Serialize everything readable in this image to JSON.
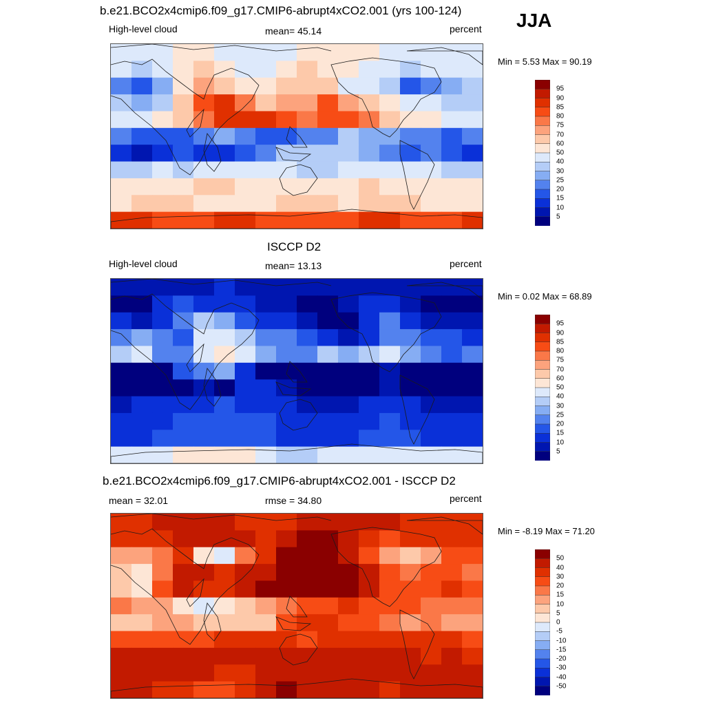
{
  "season": "JJA",
  "chart_data": [
    {
      "type": "heatmap",
      "title": "b.e21.BCO2x4cmip6.f09_g17.CMIP6-abrupt4xCO2.001 (yrs 100-124)",
      "left_label": "High-level cloud",
      "center_label": "mean=  45.14",
      "right_label": "percent",
      "minmax": "Min =   5.53 Max =  90.19",
      "mean": 45.14,
      "min": 5.53,
      "max": 90.19,
      "colorbar_levels": [
        "95",
        "90",
        "85",
        "80",
        "75",
        "70",
        "60",
        "50",
        "40",
        "30",
        "25",
        "20",
        "15",
        "10",
        "5"
      ],
      "colorbar_colors": [
        "#8a0000",
        "#c21a00",
        "#e03000",
        "#f74c15",
        "#fa7848",
        "#fca37d",
        "#fdc9aa",
        "#fde6d6",
        "#dde9fb",
        "#b4cdf7",
        "#86adf3",
        "#5382ee",
        "#2456e8",
        "#0a30d8",
        "#0016b0",
        "#00007e"
      ],
      "grid_rows": [
        [
          45,
          44,
          48,
          55,
          52,
          48,
          44,
          42,
          45,
          50,
          52,
          55,
          52,
          48,
          45,
          46,
          45,
          44
        ],
        [
          40,
          38,
          44,
          58,
          60,
          55,
          48,
          45,
          52,
          62,
          58,
          52,
          45,
          40,
          38,
          40,
          42,
          40
        ],
        [
          22,
          18,
          28,
          55,
          70,
          68,
          55,
          50,
          62,
          68,
          60,
          48,
          40,
          30,
          18,
          20,
          28,
          30
        ],
        [
          30,
          28,
          35,
          62,
          82,
          85,
          78,
          68,
          70,
          72,
          80,
          70,
          60,
          50,
          40,
          42,
          38,
          32
        ],
        [
          42,
          45,
          50,
          60,
          78,
          86,
          88,
          85,
          82,
          78,
          80,
          82,
          75,
          62,
          52,
          50,
          48,
          45
        ],
        [
          20,
          15,
          15,
          18,
          22,
          25,
          20,
          15,
          18,
          22,
          24,
          30,
          28,
          25,
          22,
          20,
          18,
          20
        ],
        [
          10,
          8,
          12,
          15,
          12,
          10,
          15,
          20,
          30,
          32,
          34,
          30,
          28,
          22,
          18,
          20,
          15,
          12
        ],
        [
          36,
          38,
          40,
          36,
          40,
          45,
          44,
          42,
          40,
          36,
          38,
          40,
          44,
          48,
          45,
          40,
          38,
          36
        ],
        [
          52,
          55,
          56,
          58,
          60,
          60,
          58,
          56,
          55,
          54,
          56,
          58,
          60,
          58,
          55,
          52,
          52,
          50
        ],
        [
          58,
          60,
          62,
          60,
          58,
          56,
          55,
          58,
          60,
          62,
          60,
          58,
          60,
          62,
          60,
          58,
          56,
          55
        ],
        [
          85,
          86,
          84,
          82,
          84,
          85,
          86,
          84,
          82,
          80,
          82,
          84,
          86,
          85,
          84,
          82,
          84,
          86
        ]
      ]
    },
    {
      "type": "heatmap",
      "title": "ISCCP D2",
      "left_label": "High-level cloud",
      "center_label": "mean=  13.13",
      "right_label": "percent",
      "minmax": "Min =   0.02 Max =  68.89",
      "mean": 13.13,
      "min": 0.02,
      "max": 68.89,
      "colorbar_levels": [
        "95",
        "90",
        "85",
        "80",
        "75",
        "70",
        "60",
        "50",
        "40",
        "30",
        "25",
        "20",
        "15",
        "10",
        "5"
      ],
      "colorbar_colors": [
        "#8a0000",
        "#c21a00",
        "#e03000",
        "#f74c15",
        "#fa7848",
        "#fca37d",
        "#fdc9aa",
        "#fde6d6",
        "#dde9fb",
        "#b4cdf7",
        "#86adf3",
        "#5382ee",
        "#2456e8",
        "#0a30d8",
        "#0016b0",
        "#00007e"
      ],
      "grid_rows": [
        [
          8,
          7,
          6,
          6,
          8,
          10,
          9,
          8,
          7,
          6,
          6,
          7,
          8,
          9,
          8,
          7,
          6,
          7
        ],
        [
          4,
          3,
          10,
          16,
          14,
          12,
          10,
          8,
          6,
          4,
          3,
          6,
          10,
          12,
          8,
          4,
          3,
          4
        ],
        [
          10,
          8,
          14,
          24,
          30,
          26,
          18,
          14,
          10,
          5,
          3,
          4,
          14,
          20,
          12,
          8,
          6,
          8
        ],
        [
          22,
          28,
          20,
          18,
          40,
          48,
          36,
          24,
          20,
          16,
          10,
          8,
          12,
          24,
          22,
          18,
          16,
          14
        ],
        [
          34,
          42,
          24,
          20,
          45,
          56,
          40,
          26,
          24,
          22,
          30,
          28,
          35,
          42,
          28,
          22,
          18,
          20
        ],
        [
          3,
          4,
          3,
          18,
          24,
          26,
          14,
          4,
          3,
          2,
          1,
          1,
          3,
          6,
          3,
          2,
          2,
          2
        ],
        [
          1,
          1,
          2,
          4,
          6,
          4,
          10,
          14,
          8,
          3,
          2,
          1,
          2,
          6,
          4,
          2,
          1,
          1
        ],
        [
          8,
          10,
          12,
          14,
          14,
          15,
          14,
          12,
          10,
          9,
          8,
          8,
          10,
          12,
          10,
          8,
          8,
          8
        ],
        [
          12,
          12,
          14,
          15,
          16,
          17,
          16,
          15,
          14,
          13,
          12,
          12,
          14,
          15,
          14,
          13,
          12,
          12
        ],
        [
          14,
          14,
          15,
          16,
          16,
          17,
          16,
          15,
          14,
          14,
          14,
          14,
          15,
          16,
          15,
          14,
          14,
          14
        ],
        [
          44,
          46,
          48,
          52,
          58,
          56,
          52,
          44,
          30,
          36,
          42,
          44,
          46,
          46,
          44,
          42,
          44,
          44
        ]
      ]
    },
    {
      "type": "heatmap",
      "title": "b.e21.BCO2x4cmip6.f09_g17.CMIP6-abrupt4xCO2.001 - ISCCP D2",
      "left_label": "mean =  32.01",
      "center_label": "rmse =  34.80",
      "right_label": "percent",
      "minmax": "Min =  -8.19 Max =  71.20",
      "mean": 32.01,
      "rmse": 34.8,
      "min": -8.19,
      "max": 71.2,
      "colorbar_levels": [
        "50",
        "40",
        "30",
        "20",
        "15",
        "10",
        "5",
        "0",
        "-5",
        "-10",
        "-15",
        "-20",
        "-30",
        "-40",
        "-50"
      ],
      "colorbar_colors": [
        "#8a0000",
        "#c21a00",
        "#e03000",
        "#f74c15",
        "#fa7848",
        "#fca37d",
        "#fdc9aa",
        "#fde6d6",
        "#dde9fb",
        "#b4cdf7",
        "#86adf3",
        "#5382ee",
        "#2456e8",
        "#0a30d8",
        "#0016b0",
        "#00007e"
      ],
      "grid_rows": [
        [
          38,
          38,
          40,
          40,
          44,
          40,
          36,
          34,
          36,
          40,
          42,
          44,
          44,
          40,
          36,
          38,
          38,
          38
        ],
        [
          36,
          35,
          34,
          42,
          46,
          44,
          40,
          38,
          44,
          58,
          55,
          46,
          35,
          28,
          30,
          36,
          38,
          36
        ],
        [
          14,
          10,
          16,
          34,
          2,
          -2,
          18,
          36,
          50,
          62,
          58,
          44,
          24,
          14,
          8,
          12,
          22,
          24
        ],
        [
          8,
          0,
          15,
          44,
          40,
          38,
          40,
          44,
          52,
          56,
          66,
          60,
          46,
          24,
          18,
          24,
          22,
          18
        ],
        [
          8,
          3,
          26,
          40,
          32,
          30,
          48,
          60,
          58,
          56,
          50,
          54,
          40,
          20,
          24,
          28,
          30,
          24
        ],
        [
          18,
          10,
          12,
          0,
          -2,
          0,
          6,
          12,
          16,
          20,
          24,
          30,
          25,
          20,
          20,
          18,
          16,
          18
        ],
        [
          9,
          7,
          10,
          11,
          6,
          6,
          5,
          6,
          22,
          30,
          32,
          28,
          26,
          16,
          14,
          18,
          14,
          11
        ],
        [
          28,
          28,
          28,
          22,
          26,
          30,
          30,
          30,
          30,
          28,
          30,
          32,
          34,
          36,
          35,
          32,
          30,
          28
        ],
        [
          40,
          42,
          42,
          43,
          44,
          43,
          42,
          41,
          41,
          41,
          44,
          46,
          46,
          43,
          41,
          39,
          40,
          38
        ],
        [
          44,
          46,
          47,
          44,
          42,
          39,
          39,
          43,
          46,
          48,
          46,
          44,
          45,
          46,
          45,
          44,
          42,
          41
        ],
        [
          40,
          40,
          36,
          30,
          26,
          29,
          34,
          40,
          52,
          44,
          40,
          40,
          40,
          39,
          40,
          40,
          40,
          42
        ]
      ]
    }
  ]
}
